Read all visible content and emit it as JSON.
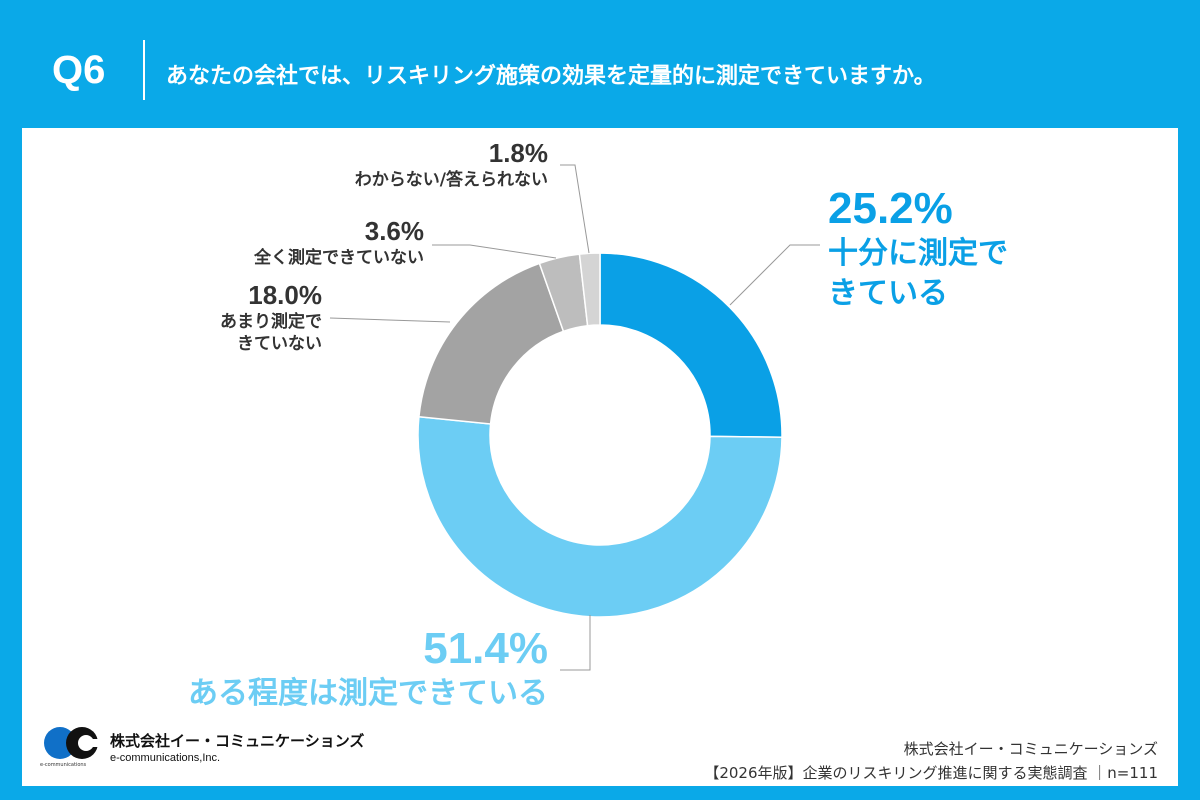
{
  "header": {
    "q": "Q6",
    "title": "あなたの会社では、リスキリング施策の効果を定量的に測定できていますか。"
  },
  "chart_data": {
    "type": "pie",
    "variant": "donut",
    "title": "あなたの会社では、リスキリング施策の効果を定量的に測定できていますか。",
    "slices": [
      {
        "label": "十分に測定できている",
        "value": 25.2,
        "value_label": "25.2%",
        "color": "#0aa0e6"
      },
      {
        "label": "ある程度は測定できている",
        "value": 51.4,
        "value_label": "51.4%",
        "color": "#6ccdf4"
      },
      {
        "label": "あまり測定できていない",
        "value": 18.0,
        "value_label": "18.0%",
        "color": "#a3a3a3"
      },
      {
        "label": "全く測定できていない",
        "value": 3.6,
        "value_label": "3.6%",
        "color": "#bdbdbd"
      },
      {
        "label": "わからない/答えられない",
        "value": 1.8,
        "value_label": "1.8%",
        "color": "#d4d4d4"
      }
    ]
  },
  "labels": {
    "s0_line1": "十分に測定で",
    "s0_line2": "きている",
    "s2_line1": "あまり測定で",
    "s2_line2": "きていない"
  },
  "footer": {
    "company_jp": "株式会社イー・コミュニケーションズ",
    "company_en": "e-communications,Inc.",
    "logo_small": "e-communications",
    "source_company": "株式会社イー・コミュニケーションズ",
    "source_survey": "【2026年版】企業のリスキリング推進に関する実態調査 ｜n=111"
  }
}
